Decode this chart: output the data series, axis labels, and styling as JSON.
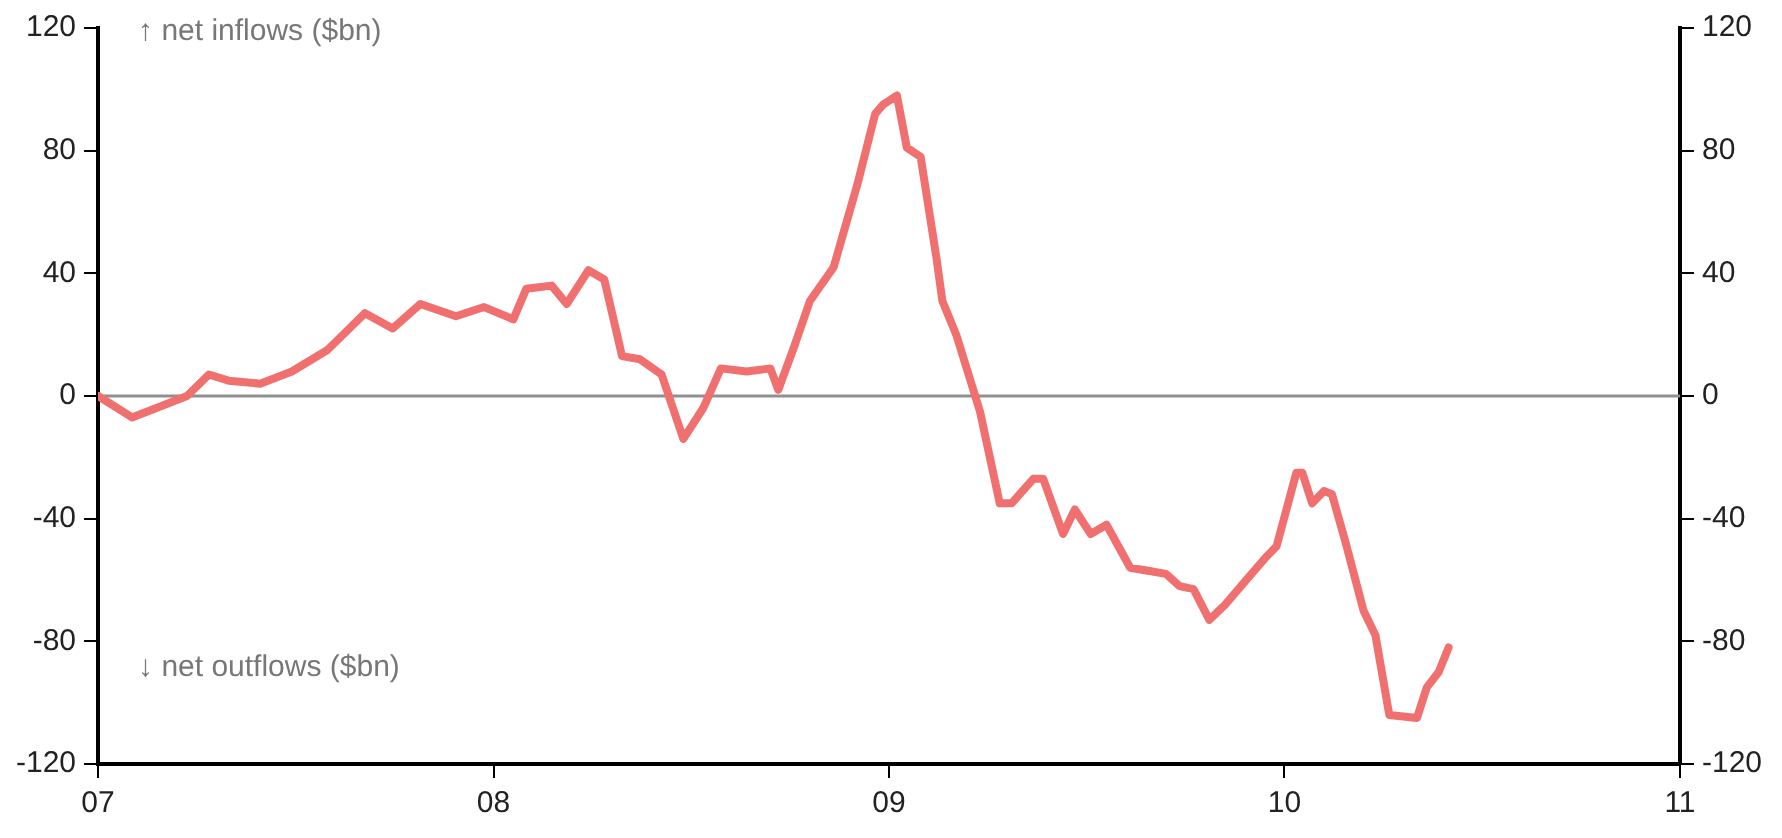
{
  "chart_data": {
    "type": "line",
    "annotations": [
      "↑ net inflows ($bn)",
      "↓ net outflows ($bn)"
    ],
    "x": [
      2007.0,
      2007.086,
      2007.225,
      2007.28,
      2007.33,
      2007.41,
      2007.49,
      2007.58,
      2007.675,
      2007.745,
      2007.815,
      2007.905,
      2007.976,
      2008.05,
      2008.083,
      2008.147,
      2008.185,
      2008.24,
      2008.28,
      2008.325,
      2008.37,
      2008.425,
      2008.48,
      2008.53,
      2008.575,
      2008.64,
      2008.7,
      2008.72,
      2008.76,
      2008.8,
      2008.86,
      2008.92,
      2008.965,
      2008.985,
      2009.02,
      2009.045,
      2009.08,
      2009.12,
      2009.135,
      2009.17,
      2009.23,
      2009.27,
      2009.28,
      2009.31,
      2009.365,
      2009.39,
      2009.44,
      2009.47,
      2009.51,
      2009.55,
      2009.61,
      2009.655,
      2009.7,
      2009.735,
      2009.77,
      2009.81,
      2009.85,
      2009.89,
      2009.95,
      2009.98,
      2010.03,
      2010.045,
      2010.07,
      2010.1,
      2010.12,
      2010.155,
      2010.2,
      2010.23,
      2010.265,
      2010.335,
      2010.36,
      2010.39,
      2010.415
    ],
    "series": [
      {
        "color": "#f07070",
        "values": [
          0,
          -7,
          0,
          7,
          5,
          4,
          8,
          15,
          27,
          22,
          30,
          26,
          29,
          25,
          35,
          36,
          30,
          41,
          38,
          13,
          12,
          7,
          -14,
          -4,
          9,
          8,
          9,
          2,
          16,
          31,
          42,
          69,
          92,
          95,
          98,
          81,
          78,
          45,
          31,
          20,
          -5,
          -29,
          -35,
          -35,
          -27,
          -27,
          -45,
          -37,
          -45,
          -42,
          -56,
          -57,
          -58,
          -62,
          -63,
          -73,
          -68,
          -62,
          -53,
          -49,
          -25,
          -25,
          -35,
          -31,
          -32,
          -48,
          -70,
          -78,
          -104,
          -105,
          -95,
          -90,
          -82
        ]
      }
    ],
    "xlim": [
      2007,
      2011
    ],
    "xticks": [
      {
        "value": 2007,
        "label": "07"
      },
      {
        "value": 2008,
        "label": "08"
      },
      {
        "value": 2009,
        "label": "09"
      },
      {
        "value": 2010,
        "label": "10"
      },
      {
        "value": 2011,
        "label": "11"
      }
    ],
    "ylim": [
      -120,
      120
    ],
    "yticks": [
      -120,
      -80,
      -40,
      0,
      40,
      80,
      120
    ],
    "y2lim": [
      -120,
      120
    ],
    "y2ticks": [
      -120,
      -80,
      -40,
      0,
      40,
      80,
      120
    ],
    "ref_lines": [
      {
        "axis": "y",
        "value": 0,
        "color": "#909090"
      }
    ],
    "grid": false,
    "legend": false,
    "marker": "none",
    "line_style": "solid"
  }
}
